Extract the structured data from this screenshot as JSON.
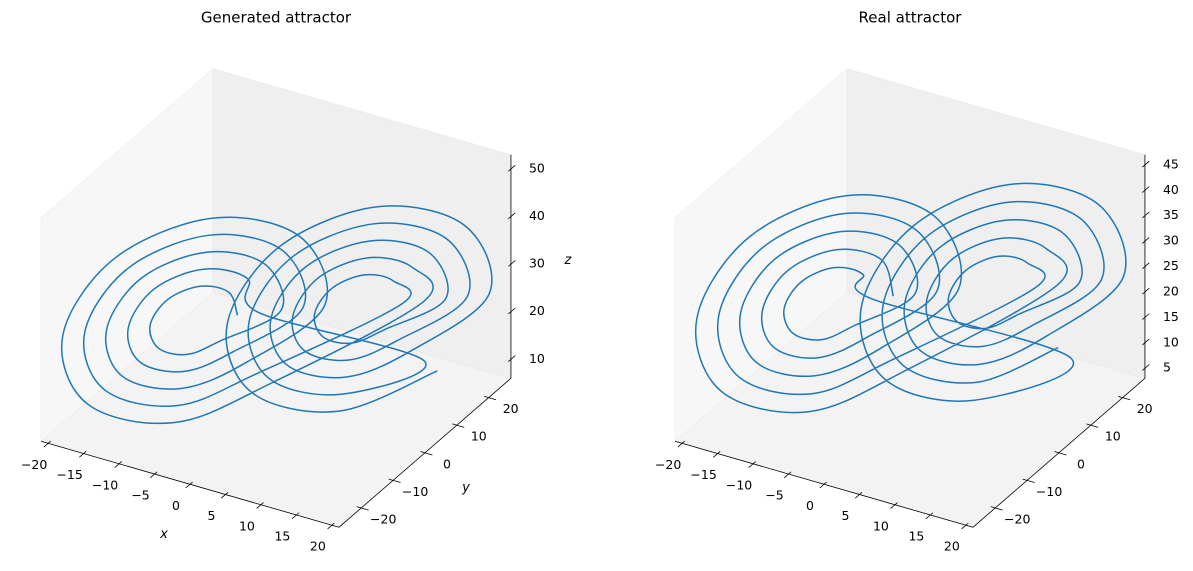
{
  "chart_data": [
    {
      "type": "line3d",
      "title": "Generated attractor",
      "x_label": "x",
      "y_label": "y",
      "z_label": "z",
      "xlim": [
        -21,
        21
      ],
      "ylim": [
        -27,
        27
      ],
      "zlim": [
        6,
        53
      ],
      "xticks": [
        {
          "value": -20,
          "label": "−20"
        },
        {
          "value": -15,
          "label": "−15"
        },
        {
          "value": -10,
          "label": "−10"
        },
        {
          "value": -5,
          "label": "−5"
        },
        0,
        5,
        10,
        15,
        20
      ],
      "yticks": [
        {
          "value": -20,
          "label": "−20"
        },
        {
          "value": -10,
          "label": "−10"
        },
        0,
        10,
        20
      ],
      "zticks": [
        10,
        20,
        30,
        40,
        50
      ],
      "grid": false,
      "series": [
        {
          "color": "#1f77b4",
          "x": [
            -4,
            -5.2,
            -8,
            -10.8,
            -12,
            -10.8,
            -8,
            -5.2,
            0,
            -2.3,
            -8,
            -13.7,
            -16,
            -13.7,
            -8,
            -2.3,
            4,
            0.5,
            -8,
            -16.5,
            -20,
            -16.5,
            -8,
            0.5,
            14,
            12.3,
            8,
            3.7,
            2,
            3.7,
            8,
            12.3,
            18,
            15.1,
            8,
            0.9,
            -2,
            0.9,
            8,
            15.1,
            -2,
            -3.7,
            -8,
            -12.3,
            -14,
            -12.3,
            -8,
            -3.7,
            2,
            -0.9,
            -8,
            -15.1,
            -18,
            -15.1,
            -8,
            -0.9,
            12,
            10.8,
            8,
            5.2,
            4,
            5.2,
            8,
            10.8,
            16,
            13.7,
            8,
            2.3,
            0,
            2.3,
            8,
            13.7,
            20,
            16.5,
            8,
            -0.5,
            -4,
            -0.5,
            8,
            16.5
          ],
          "y": [
            -3.2,
            -3.2,
            -6,
            -10,
            -12.8,
            -12.8,
            -10,
            -6,
            1.6,
            1.7,
            -4,
            -11.9,
            -17.6,
            -17.7,
            -12,
            -4.1,
            6.4,
            6.5,
            -2,
            -13.9,
            -22.4,
            -22.5,
            -14,
            -2.1,
            15.2,
            15.3,
            11,
            5.1,
            0.8,
            0.7,
            5,
            10.9,
            20,
            20.1,
            13,
            3.1,
            -4,
            -4.1,
            3,
            12.9,
            -0.8,
            -0.7,
            -5,
            -10.9,
            -15.2,
            -15.3,
            -11,
            -5.1,
            4,
            4.1,
            -3,
            -12.9,
            -20,
            -20.1,
            -13,
            -3.1,
            12.8,
            12.8,
            10,
            6,
            3.2,
            3.2,
            6,
            10,
            17.6,
            17.7,
            12,
            4.1,
            -1.6,
            -1.7,
            4,
            11.9,
            22.4,
            22.5,
            14,
            2.1,
            -6.4,
            -6.5,
            2,
            13.9
          ],
          "z": [
            26,
            30.3,
            32,
            30.3,
            26,
            21.7,
            20,
            21.7,
            26,
            34.6,
            38,
            34.6,
            26,
            17.4,
            14,
            17.4,
            26,
            38.8,
            44,
            38.8,
            26,
            13.2,
            8,
            13.2,
            26,
            32.4,
            35,
            32.4,
            26,
            19.6,
            17,
            19.6,
            26,
            36.7,
            41,
            36.7,
            26,
            15.3,
            11,
            15.3,
            26,
            32.4,
            35,
            32.4,
            26,
            19.6,
            17,
            19.6,
            26,
            36.7,
            41,
            36.7,
            26,
            15.3,
            11,
            15.3,
            26,
            30.3,
            32,
            30.3,
            26,
            21.7,
            20,
            21.7,
            26,
            34.6,
            38,
            34.6,
            26,
            17.4,
            14,
            17.4,
            26,
            38.8,
            44,
            38.8,
            26,
            13.2,
            8,
            13.2
          ]
        }
      ]
    },
    {
      "type": "line3d",
      "title": "Real attractor",
      "xlim": [
        -21,
        21
      ],
      "ylim": [
        -27,
        27
      ],
      "zlim": [
        3,
        47
      ],
      "xticks": [
        {
          "value": -20,
          "label": "−20"
        },
        {
          "value": -15,
          "label": "−15"
        },
        {
          "value": -10,
          "label": "−10"
        },
        {
          "value": -5,
          "label": "−5"
        },
        0,
        5,
        10,
        15,
        20
      ],
      "yticks": [
        {
          "value": -20,
          "label": "−20"
        },
        {
          "value": -10,
          "label": "−10"
        },
        0,
        10,
        20
      ],
      "zticks": [
        5,
        10,
        15,
        20,
        25,
        30,
        35,
        40,
        45
      ],
      "grid": false,
      "series": [
        {
          "color": "#1f77b4",
          "x": [
            -2,
            -3.7,
            -8,
            -12.3,
            -14,
            -12.3,
            -8,
            -3.7,
            2,
            -0.9,
            -8,
            -15.1,
            -18,
            -15.1,
            -8,
            -0.9,
            12,
            10.8,
            8,
            5.2,
            4,
            5.2,
            8,
            10.8,
            16,
            13.7,
            8,
            2.3,
            0,
            2.3,
            8,
            13.7,
            20,
            16.5,
            8,
            -0.5,
            -4,
            -0.5,
            8,
            16.5,
            -4,
            -5.2,
            -8,
            -10.8,
            -12,
            -10.8,
            -8,
            -5.2,
            0,
            -2.3,
            -8,
            -13.7,
            -16,
            -13.7,
            -8,
            -2.3,
            4,
            0.5,
            -8,
            -16.5,
            -20,
            -16.5,
            -8,
            0.5,
            14,
            12.3,
            8,
            3.7,
            2,
            3.7,
            8,
            12.3,
            18,
            15.1,
            8,
            0.9,
            -2,
            0.9,
            8,
            15.1
          ],
          "y": [
            -0.8,
            -0.7,
            -5,
            -10.9,
            -15.2,
            -15.3,
            -11,
            -5.1,
            4,
            4.1,
            -3,
            -12.9,
            -20,
            -20.1,
            -13,
            -3.1,
            12.8,
            12.8,
            10,
            6,
            3.2,
            3.2,
            6,
            10,
            17.6,
            17.7,
            12,
            4.1,
            -1.6,
            -1.7,
            4,
            11.9,
            22.4,
            22.5,
            14,
            2.1,
            -6.4,
            -6.5,
            2,
            13.9,
            -3.2,
            -3.2,
            -6,
            -10,
            -12.8,
            -12.8,
            -10,
            -6,
            1.6,
            1.7,
            -4,
            -11.9,
            -17.6,
            -17.7,
            -12,
            -4.1,
            6.4,
            6.5,
            -2,
            -13.9,
            -22.4,
            -22.5,
            -14,
            -2.1,
            15.2,
            15.3,
            11,
            5.1,
            0.8,
            0.7,
            5,
            10.9,
            20,
            20.1,
            13,
            3.1,
            -4,
            -4.1,
            3,
            12.9
          ],
          "z": [
            25,
            31.4,
            34,
            31.4,
            25,
            18.6,
            16,
            18.6,
            25,
            35.7,
            40,
            35.7,
            25,
            14.3,
            10,
            14.3,
            25,
            29.3,
            31,
            29.3,
            25,
            20.7,
            19,
            20.7,
            25,
            33.6,
            37,
            33.6,
            25,
            16.4,
            13,
            16.4,
            25,
            37.8,
            43,
            37.8,
            25,
            12.2,
            7,
            12.2,
            25,
            29.3,
            31,
            29.3,
            25,
            20.7,
            19,
            20.7,
            25,
            33.6,
            37,
            33.6,
            25,
            16.4,
            13,
            16.4,
            25,
            37.8,
            43,
            37.8,
            25,
            12.2,
            7,
            12.2,
            25,
            31.4,
            34,
            31.4,
            25,
            18.6,
            16,
            18.6,
            25,
            35.7,
            40,
            35.7,
            25,
            14.3,
            10,
            14.3
          ]
        }
      ]
    }
  ]
}
